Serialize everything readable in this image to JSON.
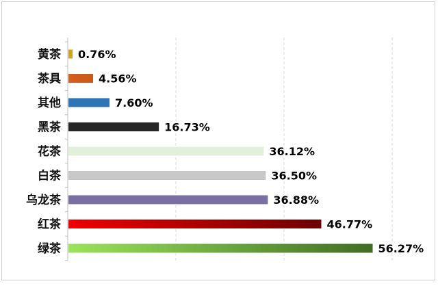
{
  "chart_data": {
    "type": "bar",
    "orientation": "horizontal",
    "categories": [
      "黄茶",
      "茶具",
      "其他",
      "黑茶",
      "花茶",
      "白茶",
      "乌龙茶",
      "红茶",
      "绿茶"
    ],
    "values": [
      0.76,
      4.56,
      7.6,
      16.73,
      36.12,
      36.5,
      36.88,
      46.77,
      56.27
    ],
    "value_labels": [
      "0.76%",
      "4.56%",
      "7.60%",
      "16.73%",
      "36.12%",
      "36.50%",
      "36.88%",
      "46.77%",
      "56.27%"
    ],
    "colors": [
      {
        "from": "#c9a227",
        "to": "#c9a227"
      },
      {
        "from": "#d4601c",
        "to": "#c85a1a"
      },
      {
        "from": "#2e75b6",
        "to": "#2e75b6"
      },
      {
        "from": "#262626",
        "to": "#262626"
      },
      {
        "from": "#e2efd9",
        "to": "#e2efd9"
      },
      {
        "from": "#c8c8c8",
        "to": "#c8c8c8"
      },
      {
        "from": "#7a6fa3",
        "to": "#7a6fa3"
      },
      {
        "from": "#ee0000",
        "to": "#6b0000"
      },
      {
        "from": "#9be35a",
        "to": "#3f6e25"
      }
    ],
    "xlim": [
      0,
      60
    ],
    "gridlines": [
      0,
      20,
      40,
      60
    ],
    "grid": true,
    "legend": false,
    "title": "",
    "xlabel": "",
    "ylabel": ""
  }
}
